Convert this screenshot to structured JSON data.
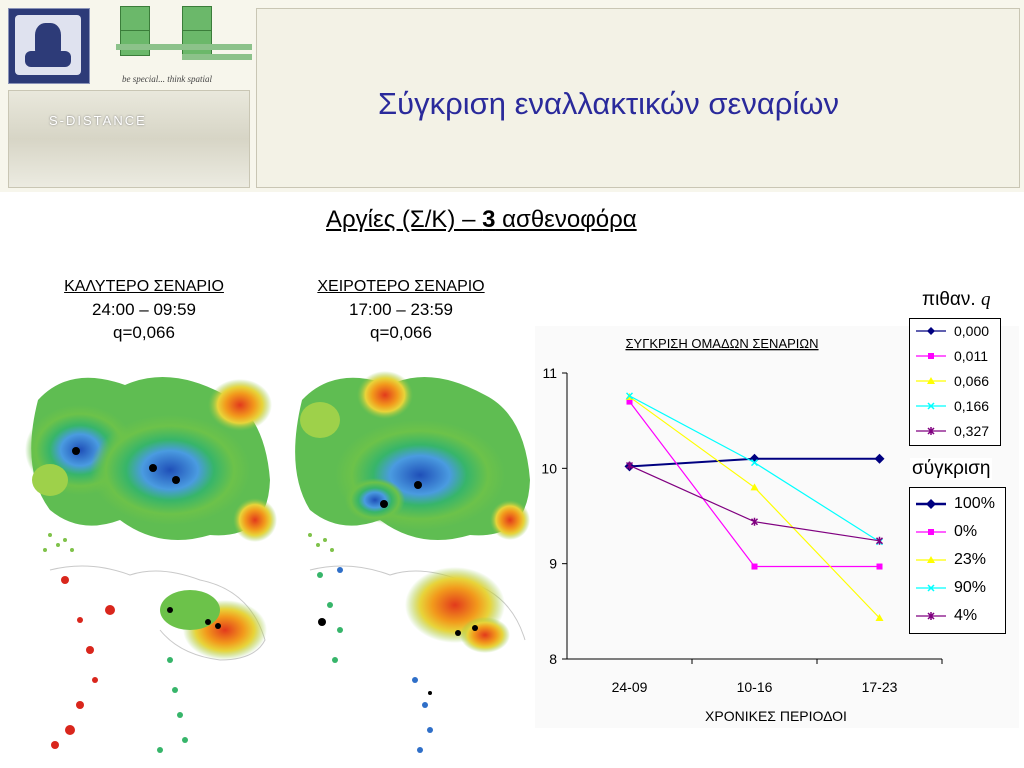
{
  "slide": {
    "title": "Σύγκριση εναλλακτικών σεναρίων",
    "subtitle_pre": "Αργίες (Σ/Κ) – ",
    "subtitle_bold": "3",
    "subtitle_post": " ασθενοφόρα"
  },
  "logos": {
    "lab_slogan": "be special... think spatial",
    "sdistance": "S-DISTANCE"
  },
  "scenarios": [
    {
      "heading": "ΚΑΛΥΤΕΡΟ ΣΕΝΑΡΙΟ",
      "time": "24:00 – 09:59",
      "q": "q=0,066"
    },
    {
      "heading": "ΧΕΙΡΟΤΕΡΟ ΣΕΝΑΡΙΟ",
      "time": "17:00 – 23:59",
      "q": "q=0,066"
    }
  ],
  "legend_prob": {
    "title": "πιθαν.",
    "title_var": "q",
    "items": [
      "0,000",
      "0,011",
      "0,066",
      "0,166",
      "0,327"
    ]
  },
  "legend_compare": {
    "title": "σύγκριση",
    "items": [
      "100%",
      "0%",
      "23%",
      "90%",
      "4%"
    ]
  },
  "colors": {
    "series": [
      "#000080",
      "#ff00ff",
      "#ffff00",
      "#00ffff",
      "#800080"
    ],
    "title": "#2a2a9b"
  },
  "chart_data": {
    "type": "line",
    "title": "ΣΥΓΚΡΙΣΗ ΟΜΑΔΩΝ ΣΕΝΑΡΙΩΝ",
    "xlabel": "ΧΡΟΝΙΚΕΣ ΠΕΡΙΟΔΟΙ",
    "ylabel": "",
    "categories": [
      "24-09",
      "10-16",
      "17-23"
    ],
    "ylim": [
      8,
      11
    ],
    "yticks": [
      "8",
      "9",
      "10",
      "11"
    ],
    "grid": false,
    "legend_position": "right",
    "series": [
      {
        "name": "0,000",
        "values": [
          10.02,
          10.1,
          10.1
        ],
        "marker": "diamond"
      },
      {
        "name": "0,011",
        "values": [
          10.7,
          8.97,
          8.97
        ],
        "marker": "square"
      },
      {
        "name": "0,066",
        "values": [
          10.75,
          9.8,
          8.43
        ],
        "marker": "triangle"
      },
      {
        "name": "0,166",
        "values": [
          10.76,
          10.06,
          9.23
        ],
        "marker": "x"
      },
      {
        "name": "0,327",
        "values": [
          10.03,
          9.44,
          9.24
        ],
        "marker": "star"
      }
    ]
  }
}
